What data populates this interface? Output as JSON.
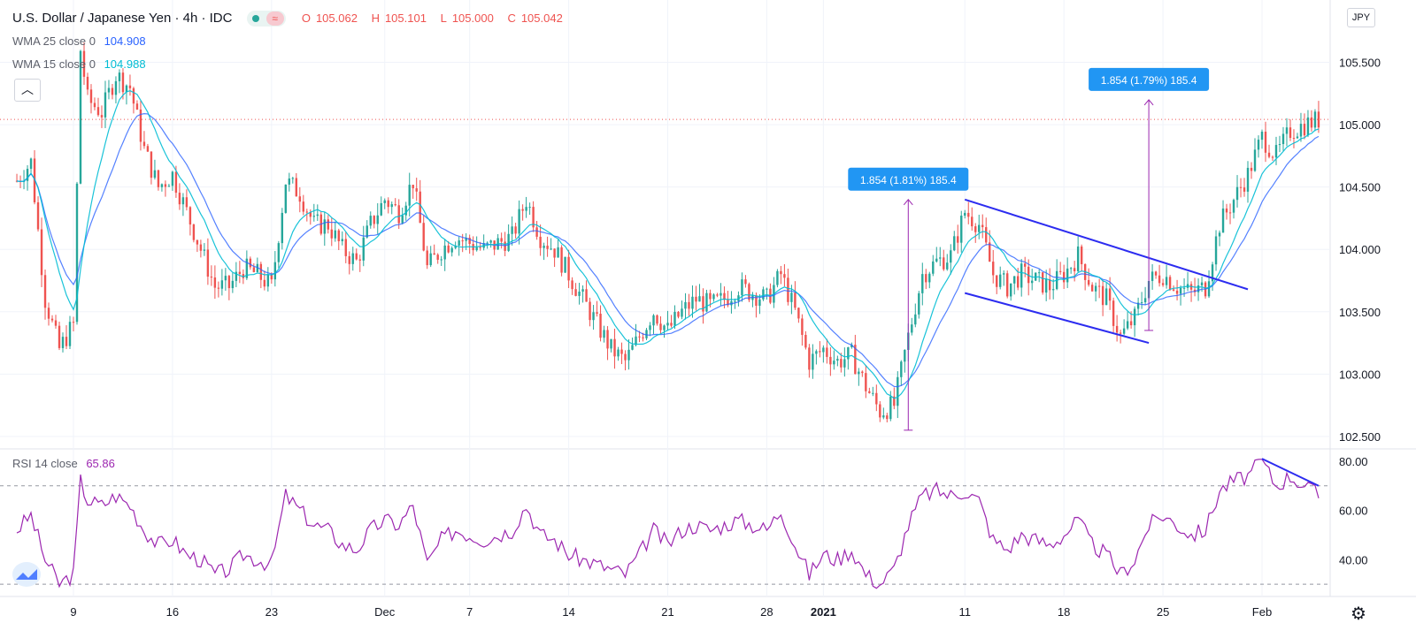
{
  "header": {
    "symbol_title": "U.S. Dollar / Japanese Yen · 4h · IDC",
    "ohlc": [
      {
        "label": "O",
        "value": "105.062"
      },
      {
        "label": "H",
        "value": "105.101"
      },
      {
        "label": "L",
        "value": "105.000"
      },
      {
        "label": "C",
        "value": "105.042"
      }
    ],
    "currency_badge": "JPY"
  },
  "indicators": {
    "wma25": {
      "label": "WMA 25 close 0",
      "value": "104.908",
      "color": "#2962ff"
    },
    "wma15": {
      "label": "WMA 15 close 0",
      "value": "104.988",
      "color": "#00bcd4"
    },
    "rsi": {
      "label": "RSI 14 close",
      "value": "65.86",
      "color": "#9c27b0"
    }
  },
  "annotations": {
    "measure_1": "1.854 (1.81%) 185.4",
    "measure_2": "1.854 (1.79%) 185.4"
  },
  "colors": {
    "up": "#26a69a",
    "down": "#ef5350",
    "trend": "#2c2cf0",
    "measure": "#9c27b0",
    "label_bg": "#2196f3",
    "axis_text": "#131722"
  },
  "chart_data": [
    {
      "type": "candlestick",
      "title": "U.S. Dollar / Japanese Yen · 4h · IDC",
      "ylim": [
        102.4,
        106.0
      ],
      "y_ticks": [
        "105.500",
        "105.000",
        "104.500",
        "104.000",
        "103.500",
        "103.000",
        "102.500"
      ],
      "x_ticks": [
        "9",
        "16",
        "23",
        "Dec",
        "7",
        "14",
        "21",
        "28",
        "2021",
        "11",
        "18",
        "25",
        "Feb"
      ],
      "last_price": 105.042,
      "price_path": [
        [
          "Nov 5",
          104.55
        ],
        [
          "Nov 6",
          104.7
        ],
        [
          "Nov 7",
          103.6
        ],
        [
          "Nov 8",
          103.2
        ],
        [
          "Nov 9",
          103.4
        ],
        [
          "Nov 9.5",
          105.6
        ],
        [
          "Nov 10",
          105.2
        ],
        [
          "Nov 11",
          105.1
        ],
        [
          "Nov 12",
          105.4
        ],
        [
          "Nov 13",
          105.3
        ],
        [
          "Nov 14",
          104.8
        ],
        [
          "Nov 15",
          104.5
        ],
        [
          "Nov 16",
          104.6
        ],
        [
          "Nov 17",
          104.3
        ],
        [
          "Nov 18",
          104.0
        ],
        [
          "Nov 19",
          103.7
        ],
        [
          "Nov 20",
          103.7
        ],
        [
          "Nov 21",
          103.85
        ],
        [
          "Nov 22",
          103.8
        ],
        [
          "Nov 23",
          103.7
        ],
        [
          "Nov 24",
          104.55
        ],
        [
          "Nov 25",
          104.45
        ],
        [
          "Nov 26",
          104.2
        ],
        [
          "Nov 27",
          104.2
        ],
        [
          "Nov 28",
          104.0
        ],
        [
          "Nov 29",
          103.9
        ],
        [
          "Nov 30",
          104.2
        ],
        [
          "Dec 1",
          104.4
        ],
        [
          "Dec 2",
          104.3
        ],
        [
          "Dec 3",
          104.55
        ],
        [
          "Dec 4",
          103.85
        ],
        [
          "Dec 5",
          104.0
        ],
        [
          "Dec 6",
          104.1
        ],
        [
          "Dec 7",
          104.05
        ],
        [
          "Dec 8",
          104.0
        ],
        [
          "Dec 9",
          104.05
        ],
        [
          "Dec 10",
          104.1
        ],
        [
          "Dec 11",
          104.4
        ],
        [
          "Dec 12",
          104.1
        ],
        [
          "Dec 13",
          104.0
        ],
        [
          "Dec 14",
          103.8
        ],
        [
          "Dec 15",
          103.6
        ],
        [
          "Dec 16",
          103.4
        ],
        [
          "Dec 17",
          103.2
        ],
        [
          "Dec 18",
          103.1
        ],
        [
          "Dec 19",
          103.3
        ],
        [
          "Dec 20",
          103.5
        ],
        [
          "Dec 21",
          103.35
        ],
        [
          "Dec 22",
          103.5
        ],
        [
          "Dec 23",
          103.6
        ],
        [
          "Dec 24",
          103.55
        ],
        [
          "Dec 25",
          103.6
        ],
        [
          "Dec 26",
          103.7
        ],
        [
          "Dec 27",
          103.65
        ],
        [
          "Dec 28",
          103.6
        ],
        [
          "Dec 29",
          103.8
        ],
        [
          "Dec 30",
          103.5
        ],
        [
          "Dec 31",
          103.1
        ],
        [
          "Jan 1",
          103.2
        ],
        [
          "Jan 2",
          103.1
        ],
        [
          "Jan 3",
          103.15
        ],
        [
          "Jan 4",
          102.9
        ],
        [
          "Jan 5",
          102.7
        ],
        [
          "Jan 6",
          102.75
        ],
        [
          "Jan 7",
          103.3
        ],
        [
          "Jan 8",
          103.8
        ],
        [
          "Jan 9",
          103.9
        ],
        [
          "Jan 10",
          103.95
        ],
        [
          "Jan 11",
          104.3
        ],
        [
          "Jan 12",
          104.2
        ],
        [
          "Jan 13",
          103.8
        ],
        [
          "Jan 14",
          103.7
        ],
        [
          "Jan 15",
          103.8
        ],
        [
          "Jan 16",
          103.75
        ],
        [
          "Jan 17",
          103.7
        ],
        [
          "Jan 18",
          103.8
        ],
        [
          "Jan 19",
          103.95
        ],
        [
          "Jan 20",
          103.7
        ],
        [
          "Jan 21",
          103.6
        ],
        [
          "Jan 22",
          103.3
        ],
        [
          "Jan 23",
          103.45
        ],
        [
          "Jan 24",
          103.75
        ],
        [
          "Jan 25",
          103.8
        ],
        [
          "Jan 26",
          103.7
        ],
        [
          "Jan 27",
          103.65
        ],
        [
          "Jan 28",
          103.7
        ],
        [
          "Jan 29",
          104.2
        ],
        [
          "Jan 30",
          104.4
        ],
        [
          "Jan 31",
          104.6
        ],
        [
          "Feb 1",
          104.9
        ],
        [
          "Feb 2",
          104.75
        ],
        [
          "Feb 3",
          104.95
        ],
        [
          "Feb 4",
          105.0
        ],
        [
          "Feb 5",
          105.04
        ]
      ],
      "series": [
        {
          "name": "WMA 25 close 0",
          "last": 104.908
        },
        {
          "name": "WMA 15 close 0",
          "last": 104.988
        }
      ],
      "annotations": [
        {
          "text": "1.854 (1.81%) 185.4",
          "from": [
            "Jan 7",
            102.55
          ],
          "to": [
            "Jan 7",
            104.4
          ]
        },
        {
          "text": "1.854 (1.79%) 185.4",
          "from": [
            "Jan 24",
            103.35
          ],
          "to": [
            "Jan 24",
            105.2
          ]
        }
      ],
      "trendlines": [
        {
          "from": [
            "Jan 11",
            104.4
          ],
          "to": [
            "Jan 31",
            103.68
          ]
        },
        {
          "from": [
            "Jan 11",
            103.65
          ],
          "to": [
            "Jan 24",
            103.25
          ]
        }
      ]
    },
    {
      "type": "line",
      "title": "RSI 14 close",
      "ylim": [
        25,
        85
      ],
      "y_ticks": [
        "80.00",
        "60.00",
        "40.00"
      ],
      "bands": [
        70,
        30
      ],
      "last": 65.86,
      "rsi_path": [
        [
          "Nov 5",
          52
        ],
        [
          "Nov 6",
          58
        ],
        [
          "Nov 7",
          40
        ],
        [
          "Nov 8",
          30
        ],
        [
          "Nov 9",
          34
        ],
        [
          "Nov 9.5",
          72
        ],
        [
          "Nov 10",
          64
        ],
        [
          "Nov 11",
          62
        ],
        [
          "Nov 12",
          66
        ],
        [
          "Nov 13",
          62
        ],
        [
          "Nov 14",
          52
        ],
        [
          "Nov 15",
          46
        ],
        [
          "Nov 16",
          48
        ],
        [
          "Nov 17",
          42
        ],
        [
          "Nov 18",
          40
        ],
        [
          "Nov 19",
          34
        ],
        [
          "Nov 20",
          36
        ],
        [
          "Nov 21",
          42
        ],
        [
          "Nov 22",
          40
        ],
        [
          "Nov 23",
          38
        ],
        [
          "Nov 24",
          66
        ],
        [
          "Nov 25",
          60
        ],
        [
          "Nov 26",
          54
        ],
        [
          "Nov 27",
          52
        ],
        [
          "Nov 28",
          46
        ],
        [
          "Nov 29",
          44
        ],
        [
          "Nov 30",
          52
        ],
        [
          "Dec 1",
          56
        ],
        [
          "Dec 2",
          54
        ],
        [
          "Dec 3",
          62
        ],
        [
          "Dec 4",
          38
        ],
        [
          "Dec 5",
          48
        ],
        [
          "Dec 6",
          52
        ],
        [
          "Dec 7",
          50
        ],
        [
          "Dec 8",
          48
        ],
        [
          "Dec 9",
          50
        ],
        [
          "Dec 10",
          52
        ],
        [
          "Dec 11",
          62
        ],
        [
          "Dec 12",
          50
        ],
        [
          "Dec 13",
          48
        ],
        [
          "Dec 14",
          42
        ],
        [
          "Dec 15",
          40
        ],
        [
          "Dec 16",
          38
        ],
        [
          "Dec 17",
          36
        ],
        [
          "Dec 18",
          34
        ],
        [
          "Dec 19",
          42
        ],
        [
          "Dec 20",
          52
        ],
        [
          "Dec 21",
          46
        ],
        [
          "Dec 22",
          52
        ],
        [
          "Dec 23",
          54
        ],
        [
          "Dec 24",
          52
        ],
        [
          "Dec 25",
          54
        ],
        [
          "Dec 26",
          56
        ],
        [
          "Dec 27",
          54
        ],
        [
          "Dec 28",
          52
        ],
        [
          "Dec 29",
          60
        ],
        [
          "Dec 30",
          46
        ],
        [
          "Dec 31",
          34
        ],
        [
          "Jan 1",
          42
        ],
        [
          "Jan 2",
          40
        ],
        [
          "Jan 3",
          44
        ],
        [
          "Jan 4",
          34
        ],
        [
          "Jan 5",
          30
        ],
        [
          "Jan 6",
          36
        ],
        [
          "Jan 7",
          54
        ],
        [
          "Jan 8",
          66
        ],
        [
          "Jan 9",
          68
        ],
        [
          "Jan 10",
          66
        ],
        [
          "Jan 11",
          68
        ],
        [
          "Jan 12",
          64
        ],
        [
          "Jan 13",
          48
        ],
        [
          "Jan 14",
          44
        ],
        [
          "Jan 15",
          50
        ],
        [
          "Jan 16",
          48
        ],
        [
          "Jan 17",
          46
        ],
        [
          "Jan 18",
          50
        ],
        [
          "Jan 19",
          56
        ],
        [
          "Jan 20",
          46
        ],
        [
          "Jan 21",
          42
        ],
        [
          "Jan 22",
          34
        ],
        [
          "Jan 23",
          40
        ],
        [
          "Jan 24",
          54
        ],
        [
          "Jan 25",
          58
        ],
        [
          "Jan 26",
          54
        ],
        [
          "Jan 27",
          50
        ],
        [
          "Jan 28",
          52
        ],
        [
          "Jan 29",
          68
        ],
        [
          "Jan 30",
          72
        ],
        [
          "Jan 31",
          74
        ],
        [
          "Feb 1",
          80
        ],
        [
          "Feb 2",
          70
        ],
        [
          "Feb 3",
          74
        ],
        [
          "Feb 4",
          70
        ],
        [
          "Feb 5",
          66
        ]
      ],
      "trendlines": [
        {
          "from": [
            "Feb 1",
            81
          ],
          "to": [
            "Feb 5",
            70
          ]
        }
      ]
    }
  ]
}
